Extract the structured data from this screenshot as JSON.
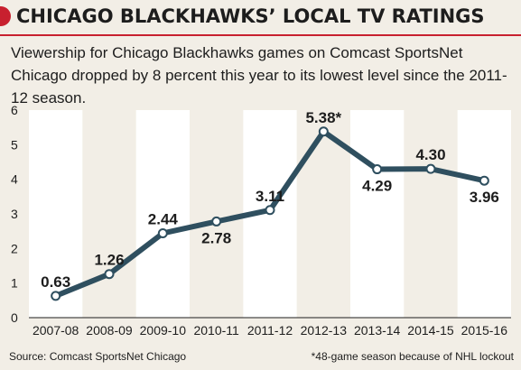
{
  "header": {
    "title": "CHICAGO BLACKHAWKS’ LOCAL TV RATINGS",
    "subtitle": "Viewership for Chicago Blackhawks games on Comcast SportsNet Chicago dropped by 8 percent this year to its lowest level since the 2011-12 season."
  },
  "footer": {
    "source": "Source: Comcast SportsNet Chicago",
    "note": "*48-game season because of NHL lockout"
  },
  "colors": {
    "background": "#f2eee6",
    "band": "#ffffff",
    "line": "#2f4f5f",
    "marker": "#ffffff",
    "accent": "#c8202f"
  },
  "chart_data": {
    "type": "line",
    "categories": [
      "2007-08",
      "2008-09",
      "2009-10",
      "2010-11",
      "2011-12",
      "2012-13",
      "2013-14",
      "2014-15",
      "2015-16"
    ],
    "values": [
      0.63,
      1.26,
      2.44,
      2.78,
      3.11,
      5.38,
      4.29,
      4.3,
      3.96
    ],
    "labels": [
      "0.63",
      "1.26",
      "2.44",
      "2.78",
      "3.11",
      "5.38*",
      "4.29",
      "4.30",
      "3.96"
    ],
    "ylim": [
      0,
      6
    ],
    "yticks": [
      "0",
      "1",
      "2",
      "3",
      "4",
      "5",
      "6"
    ],
    "xlabel": "",
    "ylabel": "",
    "grid": false,
    "alternating_bands": true
  }
}
